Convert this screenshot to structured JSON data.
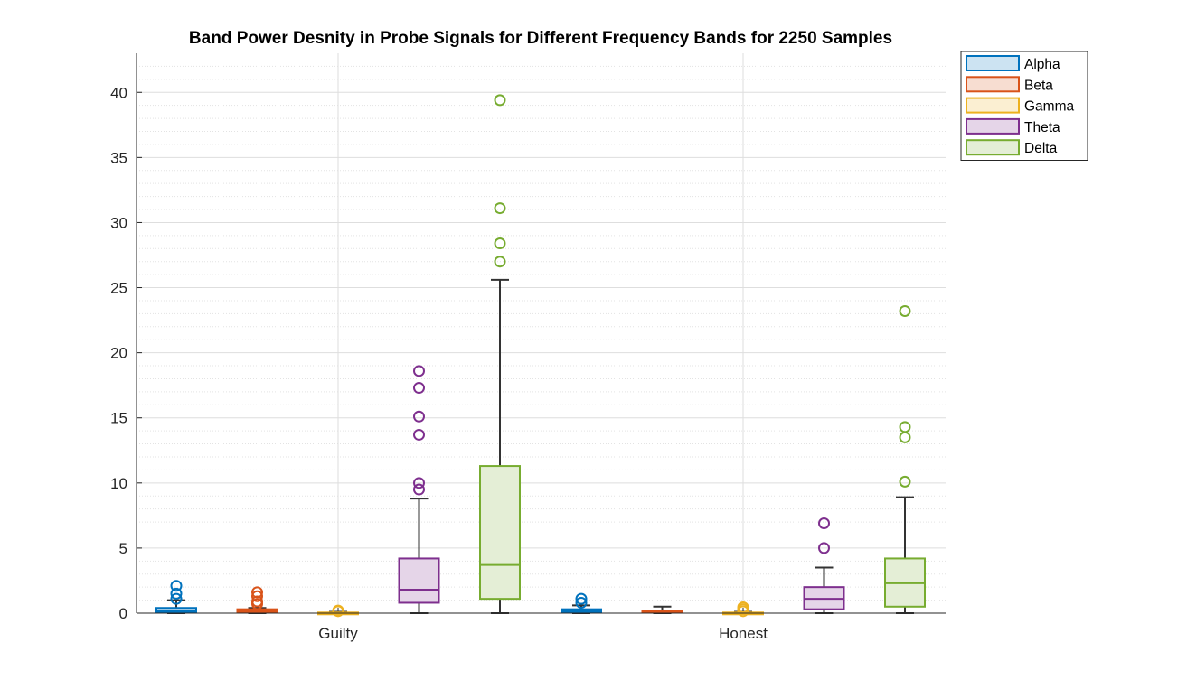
{
  "chart_data": {
    "type": "box",
    "title": "Band Power Desnity in Probe Signals for Different Frequency Bands for 2250 Samples",
    "xlabel": "",
    "ylabel": "",
    "ylim": [
      0,
      43
    ],
    "yticks": [
      0,
      5,
      10,
      15,
      20,
      25,
      30,
      35,
      40
    ],
    "ytick_labels": [
      "0",
      "5",
      "10",
      "15",
      "20",
      "25",
      "30",
      "35",
      "40"
    ],
    "categories": [
      "Guilty",
      "Honest"
    ],
    "grid": true,
    "minor_grid": true,
    "legend_position": "outside top-right",
    "series": [
      {
        "name": "Alpha",
        "color": "#0072BD",
        "fill": "#CCE3F2",
        "boxes": [
          {
            "min": 0.0,
            "q1": 0.1,
            "median": 0.2,
            "q3": 0.4,
            "max": 1.0,
            "outliers": [
              1.1,
              1.5,
              2.1
            ]
          },
          {
            "min": 0.0,
            "q1": 0.1,
            "median": 0.15,
            "q3": 0.3,
            "max": 0.6,
            "outliers": [
              0.8,
              1.1
            ]
          }
        ]
      },
      {
        "name": "Beta",
        "color": "#D95319",
        "fill": "#F7DDD1",
        "boxes": [
          {
            "min": 0.0,
            "q1": 0.05,
            "median": 0.15,
            "q3": 0.3,
            "max": 0.4,
            "outliers": [
              0.7,
              0.9,
              1.3,
              1.6
            ]
          },
          {
            "min": 0.0,
            "q1": 0.05,
            "median": 0.1,
            "q3": 0.2,
            "max": 0.5,
            "outliers": []
          }
        ]
      },
      {
        "name": "Gamma",
        "color": "#EDB120",
        "fill": "#FBEFD2",
        "boxes": [
          {
            "min": 0.0,
            "q1": 0.0,
            "median": 0.0,
            "q3": 0.05,
            "max": 0.1,
            "outliers": [
              0.15,
              0.2
            ]
          },
          {
            "min": 0.0,
            "q1": 0.0,
            "median": 0.0,
            "q3": 0.05,
            "max": 0.1,
            "outliers": [
              0.15,
              0.3,
              0.45
            ]
          }
        ]
      },
      {
        "name": "Theta",
        "color": "#7E2F8E",
        "fill": "#E5D5E8",
        "boxes": [
          {
            "min": 0.0,
            "q1": 0.8,
            "median": 1.8,
            "q3": 4.2,
            "max": 8.8,
            "outliers": [
              9.5,
              10.0,
              13.7,
              15.1,
              17.3,
              18.6
            ]
          },
          {
            "min": 0.0,
            "q1": 0.3,
            "median": 1.1,
            "q3": 2.0,
            "max": 3.5,
            "outliers": [
              5.0,
              6.9
            ]
          }
        ]
      },
      {
        "name": "Delta",
        "color": "#77AC30",
        "fill": "#E4EED6",
        "boxes": [
          {
            "min": 0.0,
            "q1": 1.1,
            "median": 3.7,
            "q3": 11.3,
            "max": 25.6,
            "outliers": [
              27.0,
              28.4,
              31.1,
              39.4
            ]
          },
          {
            "min": 0.0,
            "q1": 0.5,
            "median": 2.3,
            "q3": 4.2,
            "max": 8.9,
            "outliers": [
              10.1,
              13.5,
              14.3,
              23.2
            ]
          }
        ]
      }
    ]
  }
}
